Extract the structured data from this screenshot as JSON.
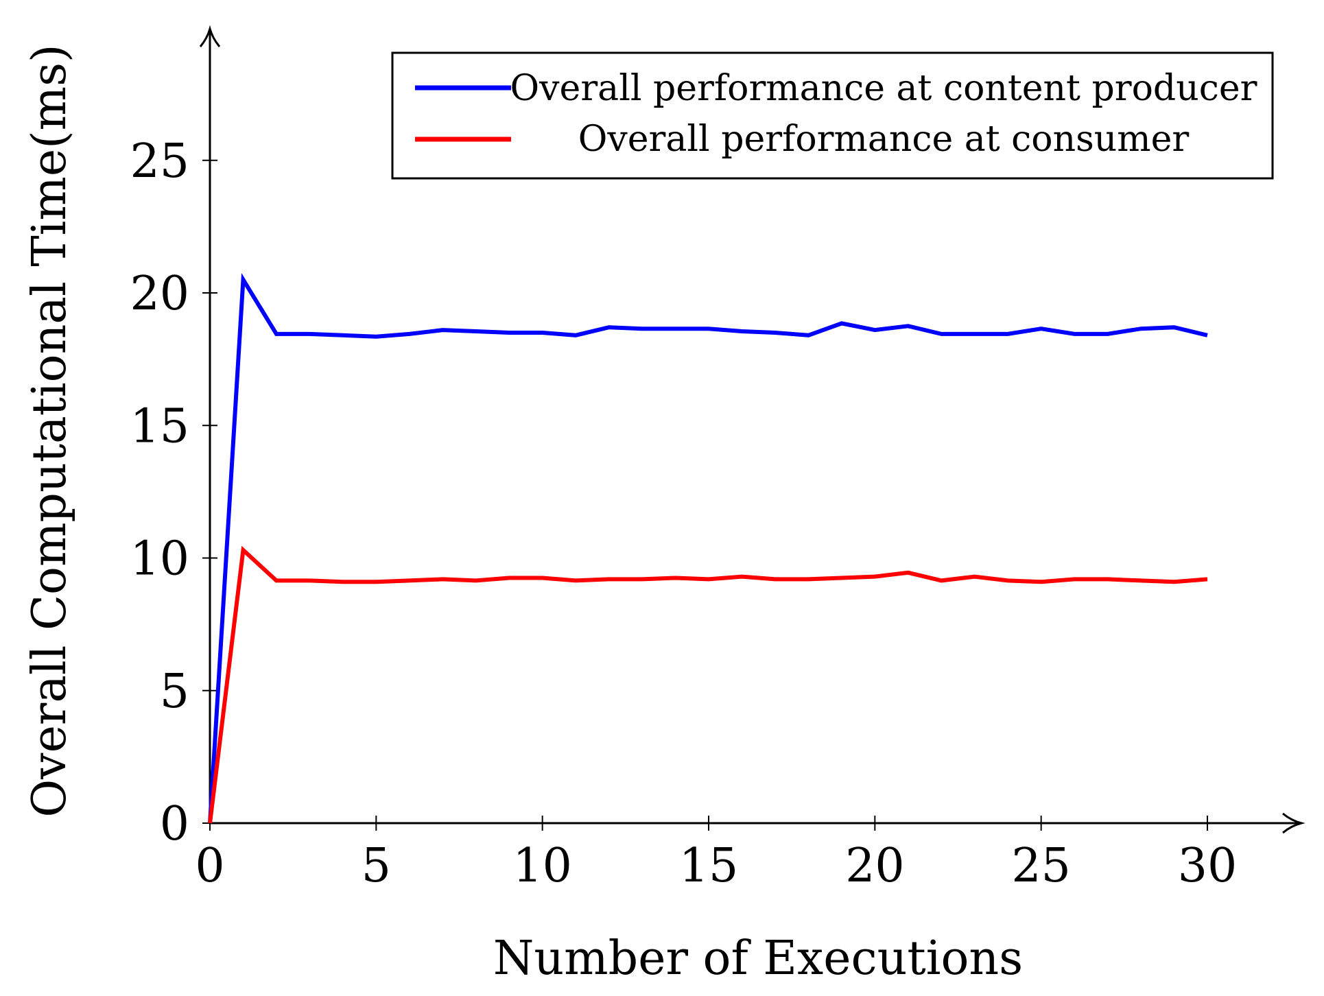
{
  "chart_data": {
    "type": "line",
    "title": "",
    "xlabel": "Number of Executions",
    "ylabel": "Overall Computational Time(ms)",
    "xlim": [
      0,
      33
    ],
    "ylim": [
      0,
      29
    ],
    "xticks": [
      0,
      5,
      10,
      15,
      20,
      25,
      30
    ],
    "yticks": [
      0,
      5,
      10,
      15,
      20,
      25
    ],
    "xtick_labels": [
      "0",
      "5",
      "10",
      "15",
      "20",
      "25",
      "30"
    ],
    "ytick_labels": [
      "0",
      "5",
      "10",
      "15",
      "20",
      "25"
    ],
    "grid": false,
    "legend_position": "top-right",
    "x": [
      0,
      1,
      2,
      3,
      4,
      5,
      6,
      7,
      8,
      9,
      10,
      11,
      12,
      13,
      14,
      15,
      16,
      17,
      18,
      19,
      20,
      21,
      22,
      23,
      24,
      25,
      26,
      27,
      28,
      29,
      30
    ],
    "series": [
      {
        "name": "Overall performance at content producer",
        "color": "#0000ff",
        "values": [
          0,
          20.5,
          18.45,
          18.45,
          18.4,
          18.35,
          18.45,
          18.6,
          18.55,
          18.5,
          18.5,
          18.4,
          18.7,
          18.65,
          18.65,
          18.65,
          18.55,
          18.5,
          18.4,
          18.85,
          18.6,
          18.75,
          18.45,
          18.45,
          18.45,
          18.65,
          18.45,
          18.45,
          18.65,
          18.7,
          18.4
        ]
      },
      {
        "name": "Overall performance at consumer",
        "color": "#ff0000",
        "values": [
          0,
          10.3,
          9.15,
          9.15,
          9.1,
          9.1,
          9.15,
          9.2,
          9.15,
          9.25,
          9.25,
          9.15,
          9.2,
          9.2,
          9.25,
          9.2,
          9.3,
          9.2,
          9.2,
          9.25,
          9.3,
          9.45,
          9.15,
          9.3,
          9.15,
          9.1,
          9.2,
          9.2,
          9.15,
          9.1,
          9.2
        ]
      }
    ]
  }
}
